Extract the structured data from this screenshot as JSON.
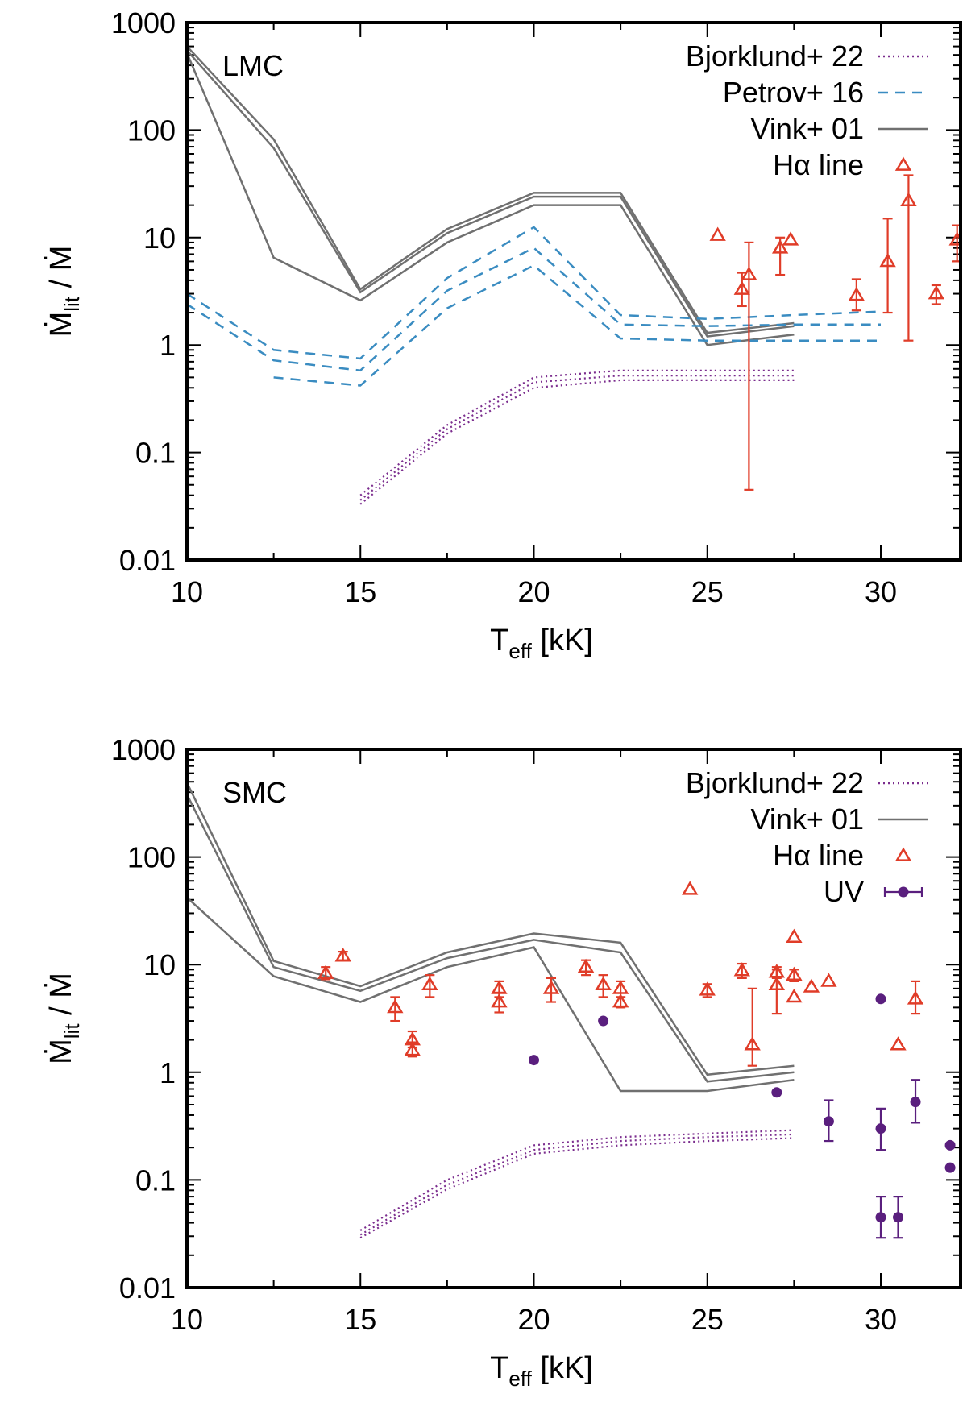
{
  "chart_data": [
    {
      "type": "line",
      "panel": "LMC",
      "xlabel": {
        "main": "T",
        "sub": "eff",
        "rest": " [kK]"
      },
      "ylabel": {
        "main": "Ṁ",
        "sub": "lit",
        "rest": " / Ṁ"
      },
      "xlim": [
        10,
        32.3
      ],
      "ylim": [
        0.01,
        1000
      ],
      "yscale": "log",
      "xticks": [
        10,
        15,
        20,
        25,
        30
      ],
      "xtick_labels": [
        "10",
        "15",
        "20",
        "25",
        "30"
      ],
      "yticks": [
        0.01,
        0.1,
        1,
        10,
        100,
        1000
      ],
      "ytick_labels": [
        "0.01",
        "0.1",
        "1",
        "10",
        "100",
        "1000"
      ],
      "legend_position": "top-right",
      "legend": [
        {
          "label": "Bjorklund+ 22",
          "style": "dotted",
          "color": "#7b2d8e"
        },
        {
          "label": "Petrov+ 16",
          "style": "dashed",
          "color": "#3a8cc1"
        },
        {
          "label": "Vink+ 01",
          "style": "solid",
          "color": "#707070"
        },
        {
          "label": "Hα line",
          "style": "triangle",
          "color": "#e03c28"
        }
      ],
      "series": [
        {
          "name": "Vink+ 01",
          "style": "solid",
          "color": "#707070",
          "x": [
            10,
            12.5,
            15,
            17.5,
            20,
            22.5,
            25,
            27.5
          ],
          "y": [
            600,
            82,
            3.3,
            12,
            26,
            26,
            1.3,
            1.6
          ]
        },
        {
          "name": "Vink+ 01",
          "style": "solid",
          "color": "#707070",
          "x": [
            10,
            12.5,
            15,
            17.5,
            20,
            22.5,
            25,
            27.5
          ],
          "y": [
            550,
            68,
            3.1,
            11,
            24,
            24,
            1.2,
            1.5
          ]
        },
        {
          "name": "Vink+ 01",
          "style": "solid",
          "color": "#707070",
          "x": [
            10,
            12.5,
            15,
            17.5,
            20,
            22.5,
            25,
            27.5
          ],
          "y": [
            520,
            6.5,
            2.6,
            9,
            20,
            20,
            1.0,
            1.25
          ]
        },
        {
          "name": "Petrov+ 16",
          "style": "dashed",
          "color": "#3a8cc1",
          "x": [
            10,
            12.5,
            15,
            17.5,
            20,
            22.5,
            25,
            27.5,
            30
          ],
          "y": [
            3.0,
            0.9,
            0.75,
            4.2,
            12.5,
            1.9,
            1.75,
            1.9,
            2.05
          ]
        },
        {
          "name": "Petrov+ 16",
          "style": "dashed",
          "color": "#3a8cc1",
          "x": [
            10,
            12.5,
            15,
            17.5,
            20,
            22.5,
            25,
            27.5,
            30
          ],
          "y": [
            2.4,
            0.72,
            0.58,
            3.2,
            8.0,
            1.55,
            1.5,
            1.55,
            1.55
          ]
        },
        {
          "name": "Petrov+ 16",
          "style": "dashed",
          "color": "#3a8cc1",
          "x": [
            12.5,
            15,
            17.5,
            20,
            22.5,
            25,
            27.5,
            30
          ],
          "y": [
            0.5,
            0.42,
            2.2,
            5.5,
            1.15,
            1.1,
            1.1,
            1.1
          ]
        },
        {
          "name": "Bjorklund+ 22",
          "style": "dotted",
          "color": "#7b2d8e",
          "x": [
            15,
            17.5,
            20,
            22.5,
            25,
            27.5
          ],
          "y": [
            0.04,
            0.18,
            0.5,
            0.58,
            0.58,
            0.58
          ]
        },
        {
          "name": "Bjorklund+ 22",
          "style": "dotted",
          "color": "#7b2d8e",
          "x": [
            15,
            17.5,
            20,
            22.5,
            25,
            27.5
          ],
          "y": [
            0.036,
            0.165,
            0.45,
            0.52,
            0.52,
            0.52
          ]
        },
        {
          "name": "Bjorklund+ 22",
          "style": "dotted",
          "color": "#7b2d8e",
          "x": [
            15,
            17.5,
            20,
            22.5,
            25,
            27.5
          ],
          "y": [
            0.033,
            0.15,
            0.4,
            0.47,
            0.47,
            0.47
          ]
        }
      ],
      "points": [
        {
          "name": "Hα line",
          "marker": "triangle",
          "color": "#e03c28",
          "data": [
            {
              "x": 25.3,
              "y": 10.5
            },
            {
              "x": 26.0,
              "y": 3.3,
              "ylo": 2.3,
              "yhi": 4.7
            },
            {
              "x": 26.2,
              "y": 4.5,
              "ylo": 0.045,
              "yhi": 9.0
            },
            {
              "x": 27.1,
              "y": 8.0,
              "ylo": 4.5,
              "yhi": 10.0
            },
            {
              "x": 27.4,
              "y": 9.5
            },
            {
              "x": 29.3,
              "y": 2.9,
              "ylo": 2.1,
              "yhi": 4.1
            },
            {
              "x": 30.2,
              "y": 6.0,
              "ylo": 2.0,
              "yhi": 15.0
            },
            {
              "x": 30.8,
              "y": 22.0,
              "ylo": 1.1,
              "yhi": 38.0
            },
            {
              "x": 31.6,
              "y": 3.0,
              "ylo": 2.4,
              "yhi": 3.6
            },
            {
              "x": 32.2,
              "y": 9.5,
              "ylo": 6.0,
              "yhi": 13.0
            }
          ]
        }
      ]
    },
    {
      "type": "line",
      "panel": "SMC",
      "xlabel": {
        "main": "T",
        "sub": "eff",
        "rest": " [kK]"
      },
      "ylabel": {
        "main": "Ṁ",
        "sub": "lit",
        "rest": " / Ṁ"
      },
      "xlim": [
        10,
        32.3
      ],
      "ylim": [
        0.01,
        1000
      ],
      "yscale": "log",
      "xticks": [
        10,
        15,
        20,
        25,
        30
      ],
      "xtick_labels": [
        "10",
        "15",
        "20",
        "25",
        "30"
      ],
      "yticks": [
        0.01,
        0.1,
        1,
        10,
        100,
        1000
      ],
      "ytick_labels": [
        "0.01",
        "0.1",
        "1",
        "10",
        "100",
        "1000"
      ],
      "legend_position": "top-right",
      "legend": [
        {
          "label": "Bjorklund+ 22",
          "style": "dotted",
          "color": "#7b2d8e"
        },
        {
          "label": "Vink+ 01",
          "style": "solid",
          "color": "#707070"
        },
        {
          "label": "Hα line",
          "style": "triangle",
          "color": "#e03c28"
        },
        {
          "label": "UV",
          "style": "circle",
          "color": "#5a1f7e"
        }
      ],
      "series": [
        {
          "name": "Vink+ 01",
          "style": "solid",
          "color": "#707070",
          "x": [
            10,
            12.5,
            15,
            17.5,
            20,
            22.5,
            25,
            27.5
          ],
          "y": [
            490,
            10.8,
            6.3,
            13,
            19.5,
            16,
            0.95,
            1.15
          ]
        },
        {
          "name": "Vink+ 01",
          "style": "solid",
          "color": "#707070",
          "x": [
            10,
            12.5,
            15,
            17.5,
            20,
            22.5,
            25,
            27.5
          ],
          "y": [
            380,
            9.5,
            5.7,
            11.5,
            17,
            13,
            0.82,
            1.0
          ]
        },
        {
          "name": "Vink+ 01",
          "style": "solid",
          "color": "#707070",
          "x": [
            10,
            12.5,
            15,
            17.5,
            20,
            22.5,
            25,
            27.5
          ],
          "y": [
            42,
            7.8,
            4.5,
            9.5,
            14.5,
            0.67,
            0.67,
            0.85
          ]
        },
        {
          "name": "Bjorklund+ 22",
          "style": "dotted",
          "color": "#7b2d8e",
          "x": [
            15,
            17.5,
            20,
            22.5,
            25,
            27.5
          ],
          "y": [
            0.034,
            0.1,
            0.21,
            0.25,
            0.27,
            0.29
          ]
        },
        {
          "name": "Bjorklund+ 22",
          "style": "dotted",
          "color": "#7b2d8e",
          "x": [
            15,
            17.5,
            20,
            22.5,
            25,
            27.5
          ],
          "y": [
            0.031,
            0.09,
            0.19,
            0.23,
            0.25,
            0.265
          ]
        },
        {
          "name": "Bjorklund+ 22",
          "style": "dotted",
          "color": "#7b2d8e",
          "x": [
            15,
            17.5,
            20,
            22.5,
            25,
            27.5
          ],
          "y": [
            0.029,
            0.082,
            0.175,
            0.21,
            0.23,
            0.245
          ]
        }
      ],
      "points": [
        {
          "name": "Hα line",
          "marker": "triangle",
          "color": "#e03c28",
          "data": [
            {
              "x": 14.0,
              "y": 8.3,
              "ylo": 7.3,
              "yhi": 9.5
            },
            {
              "x": 14.5,
              "y": 12.0,
              "ylo": 11.0,
              "yhi": 13.2
            },
            {
              "x": 16.0,
              "y": 4.0,
              "ylo": 3.0,
              "yhi": 5.0
            },
            {
              "x": 16.5,
              "y": 2.0,
              "ylo": 1.7,
              "yhi": 2.4
            },
            {
              "x": 16.5,
              "y": 1.6,
              "ylo": 1.4,
              "yhi": 1.9
            },
            {
              "x": 17.0,
              "y": 6.5,
              "ylo": 5.0,
              "yhi": 8.0
            },
            {
              "x": 19.0,
              "y": 6.0,
              "ylo": 5.0,
              "yhi": 7.0
            },
            {
              "x": 19.0,
              "y": 4.5,
              "ylo": 3.6,
              "yhi": 5.5
            },
            {
              "x": 20.5,
              "y": 6.0,
              "ylo": 4.5,
              "yhi": 7.5
            },
            {
              "x": 21.5,
              "y": 9.5,
              "ylo": 8.0,
              "yhi": 11.0
            },
            {
              "x": 22.0,
              "y": 6.5,
              "ylo": 5.0,
              "yhi": 8.0
            },
            {
              "x": 22.5,
              "y": 6.0,
              "ylo": 5.0,
              "yhi": 7.0
            },
            {
              "x": 22.5,
              "y": 4.5,
              "ylo": 4.0,
              "yhi": 5.0
            },
            {
              "x": 24.5,
              "y": 50.0
            },
            {
              "x": 25.0,
              "y": 5.8,
              "ylo": 5.0,
              "yhi": 6.6
            },
            {
              "x": 26.0,
              "y": 8.8,
              "ylo": 7.5,
              "yhi": 10.2
            },
            {
              "x": 26.3,
              "y": 1.8,
              "ylo": 1.15,
              "yhi": 6.0
            },
            {
              "x": 27.0,
              "y": 8.5,
              "ylo": 7.5,
              "yhi": 9.5
            },
            {
              "x": 27.0,
              "y": 6.5,
              "ylo": 3.5,
              "yhi": 9.0
            },
            {
              "x": 27.5,
              "y": 18.0
            },
            {
              "x": 27.5,
              "y": 8.0,
              "ylo": 7.0,
              "yhi": 9.0
            },
            {
              "x": 27.5,
              "y": 5.0
            },
            {
              "x": 28.0,
              "y": 6.2
            },
            {
              "x": 28.5,
              "y": 7.0
            },
            {
              "x": 30.5,
              "y": 1.8
            },
            {
              "x": 31.0,
              "y": 4.8,
              "ylo": 3.5,
              "yhi": 7.0
            }
          ]
        },
        {
          "name": "UV",
          "marker": "circle",
          "color": "#5a1f7e",
          "data": [
            {
              "x": 20.0,
              "y": 1.3
            },
            {
              "x": 22.0,
              "y": 3.0
            },
            {
              "x": 27.0,
              "y": 0.65
            },
            {
              "x": 28.5,
              "y": 0.35,
              "ylo": 0.23,
              "yhi": 0.55
            },
            {
              "x": 30.0,
              "y": 4.8
            },
            {
              "x": 30.0,
              "y": 0.3,
              "ylo": 0.19,
              "yhi": 0.46
            },
            {
              "x": 30.0,
              "y": 0.045,
              "ylo": 0.029,
              "yhi": 0.07
            },
            {
              "x": 30.5,
              "y": 0.045,
              "ylo": 0.029,
              "yhi": 0.07
            },
            {
              "x": 31.0,
              "y": 0.53,
              "ylo": 0.34,
              "yhi": 0.85
            },
            {
              "x": 32.0,
              "y": 0.21
            },
            {
              "x": 32.0,
              "y": 0.13
            }
          ]
        }
      ]
    }
  ]
}
